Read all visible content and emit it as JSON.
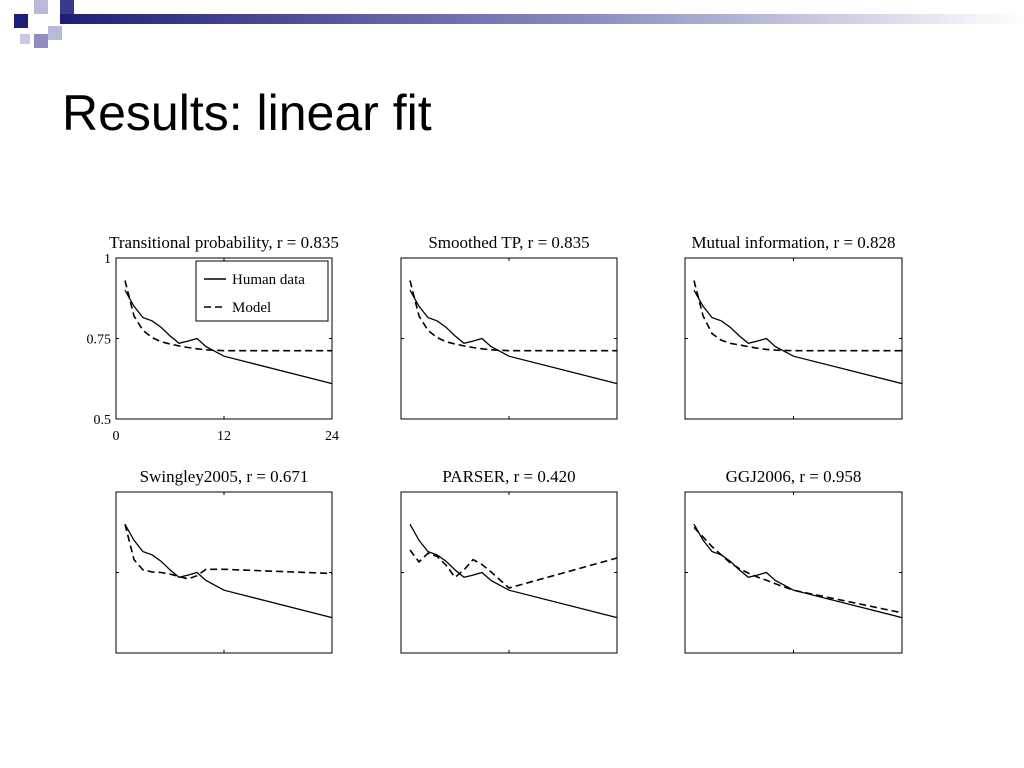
{
  "slide": {
    "title": "Results: linear fit",
    "colors": {
      "decor_dark": "#1e1e78",
      "decor_light": "#a9a9cf",
      "decor_mid": "#6a6aa6"
    }
  },
  "legend": {
    "items": [
      "Human data",
      "Model"
    ]
  },
  "chart_data": [
    {
      "type": "line",
      "title": "Transitional probability, r = 0.835",
      "xlim": [
        0,
        24
      ],
      "ylim": [
        0.5,
        1
      ],
      "xticks": [
        "0",
        "12",
        "24"
      ],
      "yticks": [
        "0.5",
        "0.75",
        "1"
      ],
      "legend": "top-right",
      "series": [
        {
          "name": "Human data",
          "style": "solid",
          "x": [
            1,
            2,
            3,
            4,
            5,
            6,
            7,
            8,
            9,
            10,
            12,
            24
          ],
          "y": [
            0.9,
            0.85,
            0.815,
            0.805,
            0.785,
            0.758,
            0.735,
            0.742,
            0.75,
            0.725,
            0.695,
            0.61
          ]
        },
        {
          "name": "Model",
          "style": "dashed",
          "x": [
            1,
            2,
            3,
            4,
            5,
            6,
            7,
            8,
            9,
            10,
            12,
            24
          ],
          "y": [
            0.93,
            0.82,
            0.775,
            0.753,
            0.74,
            0.733,
            0.727,
            0.722,
            0.718,
            0.715,
            0.712,
            0.712
          ]
        }
      ]
    },
    {
      "type": "line",
      "title": "Smoothed TP, r = 0.835",
      "xlim": [
        0,
        24
      ],
      "ylim": [
        0.5,
        1
      ],
      "xticks": [],
      "yticks": [],
      "series": [
        {
          "name": "Human data",
          "style": "solid",
          "x": [
            1,
            2,
            3,
            4,
            5,
            6,
            7,
            8,
            9,
            10,
            12,
            24
          ],
          "y": [
            0.9,
            0.85,
            0.815,
            0.805,
            0.785,
            0.758,
            0.735,
            0.742,
            0.75,
            0.725,
            0.695,
            0.61
          ]
        },
        {
          "name": "Model",
          "style": "dashed",
          "x": [
            1,
            2,
            3,
            4,
            5,
            6,
            7,
            8,
            9,
            10,
            12,
            24
          ],
          "y": [
            0.93,
            0.82,
            0.775,
            0.753,
            0.74,
            0.733,
            0.727,
            0.722,
            0.718,
            0.715,
            0.712,
            0.712
          ]
        }
      ]
    },
    {
      "type": "line",
      "title": "Mutual information, r = 0.828",
      "xlim": [
        0,
        24
      ],
      "ylim": [
        0.5,
        1
      ],
      "xticks": [],
      "yticks": [],
      "series": [
        {
          "name": "Human data",
          "style": "solid",
          "x": [
            1,
            2,
            3,
            4,
            5,
            6,
            7,
            8,
            9,
            10,
            12,
            24
          ],
          "y": [
            0.9,
            0.85,
            0.815,
            0.805,
            0.785,
            0.758,
            0.735,
            0.742,
            0.75,
            0.725,
            0.695,
            0.61
          ]
        },
        {
          "name": "Model",
          "style": "dashed",
          "x": [
            1,
            2,
            3,
            4,
            5,
            6,
            7,
            8,
            9,
            10,
            12,
            24
          ],
          "y": [
            0.93,
            0.82,
            0.765,
            0.745,
            0.735,
            0.73,
            0.725,
            0.72,
            0.716,
            0.714,
            0.712,
            0.712
          ]
        }
      ]
    },
    {
      "type": "line",
      "title": "Swingley2005, r = 0.671",
      "xlim": [
        0,
        24
      ],
      "ylim": [
        0.5,
        1
      ],
      "xticks": [],
      "yticks": [],
      "series": [
        {
          "name": "Human data",
          "style": "solid",
          "x": [
            1,
            2,
            3,
            4,
            5,
            6,
            7,
            8,
            9,
            10,
            12,
            24
          ],
          "y": [
            0.9,
            0.85,
            0.815,
            0.805,
            0.785,
            0.758,
            0.735,
            0.742,
            0.75,
            0.725,
            0.695,
            0.61
          ]
        },
        {
          "name": "Model",
          "style": "dashed",
          "x": [
            1,
            2,
            3,
            4,
            5,
            6,
            7,
            8,
            9,
            10,
            12,
            24
          ],
          "y": [
            0.9,
            0.79,
            0.758,
            0.752,
            0.75,
            0.745,
            0.738,
            0.73,
            0.74,
            0.76,
            0.76,
            0.747
          ]
        }
      ]
    },
    {
      "type": "line",
      "title": "PARSER, r = 0.420",
      "xlim": [
        0,
        24
      ],
      "ylim": [
        0.5,
        1
      ],
      "xticks": [],
      "yticks": [],
      "series": [
        {
          "name": "Human data",
          "style": "solid",
          "x": [
            1,
            2,
            3,
            4,
            5,
            6,
            7,
            8,
            9,
            10,
            12,
            24
          ],
          "y": [
            0.9,
            0.85,
            0.815,
            0.805,
            0.785,
            0.758,
            0.735,
            0.742,
            0.75,
            0.725,
            0.695,
            0.61
          ]
        },
        {
          "name": "Model",
          "style": "dashed",
          "x": [
            1,
            2,
            3,
            4,
            5,
            6,
            7,
            8,
            9,
            10,
            12,
            24
          ],
          "y": [
            0.82,
            0.783,
            0.81,
            0.8,
            0.773,
            0.735,
            0.758,
            0.79,
            0.775,
            0.752,
            0.702,
            0.795
          ]
        }
      ]
    },
    {
      "type": "line",
      "title": "GGJ2006, r = 0.958",
      "xlim": [
        0,
        24
      ],
      "ylim": [
        0.5,
        1
      ],
      "xticks": [],
      "yticks": [],
      "series": [
        {
          "name": "Human data",
          "style": "solid",
          "x": [
            1,
            2,
            3,
            4,
            5,
            6,
            7,
            8,
            9,
            10,
            12,
            24
          ],
          "y": [
            0.9,
            0.85,
            0.815,
            0.805,
            0.785,
            0.758,
            0.735,
            0.742,
            0.75,
            0.725,
            0.695,
            0.61
          ]
        },
        {
          "name": "Model",
          "style": "dashed",
          "x": [
            1,
            2,
            3,
            4,
            5,
            6,
            7,
            8,
            9,
            10,
            12,
            24
          ],
          "y": [
            0.89,
            0.86,
            0.83,
            0.805,
            0.78,
            0.762,
            0.748,
            0.736,
            0.726,
            0.715,
            0.695,
            0.625
          ]
        }
      ]
    }
  ]
}
